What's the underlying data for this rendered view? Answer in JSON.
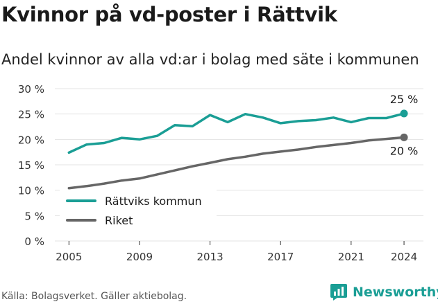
{
  "title": "Kvinnor på vd-poster i Rättvik",
  "subtitle": "Andel kvinnor av alla vd:ar i bolag med säte i kommunen",
  "footer": "Källa: Bolagsverket. Gäller aktiebolag.",
  "brand": {
    "name": "Newsworthy",
    "icon": "newsworthy-logo-icon",
    "color": "#1a9e95"
  },
  "chart_data": {
    "type": "line",
    "title": "",
    "xlabel": "",
    "ylabel": "",
    "x": [
      2005,
      2006,
      2007,
      2008,
      2009,
      2010,
      2011,
      2012,
      2013,
      2014,
      2015,
      2016,
      2017,
      2018,
      2019,
      2020,
      2021,
      2022,
      2023,
      2024
    ],
    "xticks": [
      2005,
      2009,
      2013,
      2017,
      2021,
      2024
    ],
    "xtick_labels": [
      "2005",
      "2009",
      "2013",
      "2017",
      "2021",
      "2024"
    ],
    "ylim": [
      0,
      30
    ],
    "yticks": [
      0,
      5,
      10,
      15,
      20,
      25,
      30
    ],
    "ytick_labels": [
      "0 %",
      "5 %",
      "10 %",
      "15 %",
      "20 %",
      "25 %",
      "30 %"
    ],
    "grid": "horizontal",
    "legend_position": "bottom-left",
    "series": [
      {
        "name": "Rättviks kommun",
        "color": "#1a9e95",
        "values": [
          17.4,
          19.0,
          19.3,
          20.3,
          20.0,
          20.7,
          22.8,
          22.6,
          24.8,
          23.4,
          25.0,
          24.3,
          23.2,
          23.6,
          23.8,
          24.3,
          23.4,
          24.2,
          24.2,
          25.1
        ],
        "end_label": "25 %"
      },
      {
        "name": "Riket",
        "color": "#666666",
        "values": [
          10.4,
          10.8,
          11.3,
          11.9,
          12.3,
          13.1,
          13.9,
          14.7,
          15.4,
          16.1,
          16.6,
          17.2,
          17.6,
          18.0,
          18.5,
          18.9,
          19.3,
          19.8,
          20.1,
          20.4
        ],
        "end_label": "20 %"
      }
    ]
  }
}
